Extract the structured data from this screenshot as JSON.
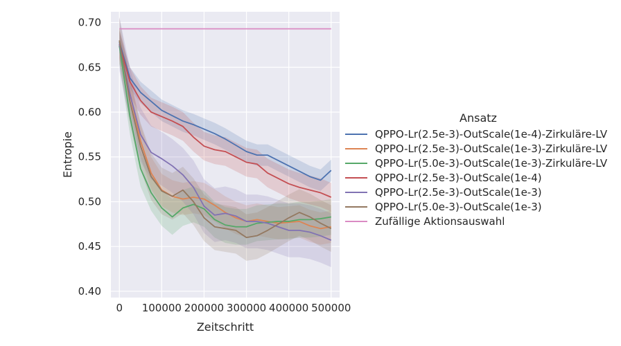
{
  "chart_data": {
    "type": "line",
    "xlabel": "Zeitschritt",
    "ylabel": "Entropie",
    "xlim": [
      -20000,
      520000
    ],
    "ylim": [
      0.393,
      0.712
    ],
    "x_ticks": [
      0,
      100000,
      200000,
      300000,
      400000,
      500000
    ],
    "y_ticks": [
      0.4,
      0.45,
      0.5,
      0.55,
      0.6,
      0.65,
      0.7
    ],
    "x_tick_labels": [
      "0",
      "100000",
      "200000",
      "300000",
      "400000",
      "500000"
    ],
    "y_tick_labels": [
      "0.40",
      "0.45",
      "0.50",
      "0.55",
      "0.60",
      "0.65",
      "0.70"
    ],
    "grid": true,
    "legend_title": "Ansatz",
    "legend_position": "right-outside",
    "x": [
      0,
      25000,
      50000,
      75000,
      100000,
      125000,
      150000,
      175000,
      200000,
      225000,
      250000,
      275000,
      300000,
      325000,
      350000,
      375000,
      400000,
      425000,
      450000,
      475000,
      500000
    ],
    "series": [
      {
        "name": "QPPO-Lr(2.5e-3)-OutScale(1e-4)-Zirkuläre-LV",
        "color": "#4c72b0",
        "values": [
          0.678,
          0.638,
          0.622,
          0.612,
          0.602,
          0.596,
          0.59,
          0.586,
          0.581,
          0.576,
          0.57,
          0.563,
          0.556,
          0.552,
          0.552,
          0.546,
          0.54,
          0.534,
          0.528,
          0.524,
          0.535
        ],
        "ci": 0.012
      },
      {
        "name": "QPPO-Lr(2.5e-3)-OutScale(1e-3)-Zirkuläre-LV",
        "color": "#dd8452",
        "values": [
          0.676,
          0.62,
          0.568,
          0.532,
          0.513,
          0.506,
          0.503,
          0.505,
          0.503,
          0.496,
          0.488,
          0.482,
          0.478,
          0.48,
          0.478,
          0.476,
          0.477,
          0.478,
          0.473,
          0.47,
          0.472
        ],
        "ci": 0.018
      },
      {
        "name": "QPPO-Lr(5.0e-3)-OutScale(1e-3)-Zirkuläre-LV",
        "color": "#55a868",
        "values": [
          0.674,
          0.595,
          0.537,
          0.51,
          0.493,
          0.483,
          0.493,
          0.497,
          0.492,
          0.48,
          0.474,
          0.472,
          0.472,
          0.476,
          0.477,
          0.478,
          0.478,
          0.48,
          0.48,
          0.481,
          0.483
        ],
        "ci": 0.02
      },
      {
        "name": "QPPO-Lr(2.5e-3)-OutScale(1e-4)",
        "color": "#c44e52",
        "values": [
          0.676,
          0.634,
          0.613,
          0.6,
          0.595,
          0.59,
          0.584,
          0.572,
          0.562,
          0.558,
          0.556,
          0.55,
          0.544,
          0.542,
          0.532,
          0.526,
          0.52,
          0.516,
          0.513,
          0.51,
          0.505
        ],
        "ci": 0.016
      },
      {
        "name": "QPPO-Lr(2.5e-3)-OutScale(1e-3)",
        "color": "#8172b3",
        "values": [
          0.676,
          0.62,
          0.575,
          0.555,
          0.548,
          0.54,
          0.53,
          0.516,
          0.495,
          0.485,
          0.487,
          0.484,
          0.478,
          0.478,
          0.476,
          0.472,
          0.468,
          0.468,
          0.466,
          0.462,
          0.457
        ],
        "ci": 0.03
      },
      {
        "name": "QPPO-Lr(5.0e-3)-OutScale(1e-3)",
        "color": "#937860",
        "values": [
          0.68,
          0.612,
          0.562,
          0.528,
          0.512,
          0.506,
          0.513,
          0.5,
          0.482,
          0.472,
          0.47,
          0.468,
          0.46,
          0.462,
          0.468,
          0.475,
          0.482,
          0.488,
          0.483,
          0.476,
          0.47
        ],
        "ci": 0.026
      },
      {
        "name": "Zufällige Aktionsauswahl",
        "color": "#da8bc3",
        "values": [
          0.693,
          0.693,
          0.693,
          0.693,
          0.693,
          0.693,
          0.693,
          0.693,
          0.693,
          0.693,
          0.693,
          0.693,
          0.693,
          0.693,
          0.693,
          0.693,
          0.693,
          0.693,
          0.693,
          0.693,
          0.693
        ],
        "ci": 0
      }
    ]
  }
}
